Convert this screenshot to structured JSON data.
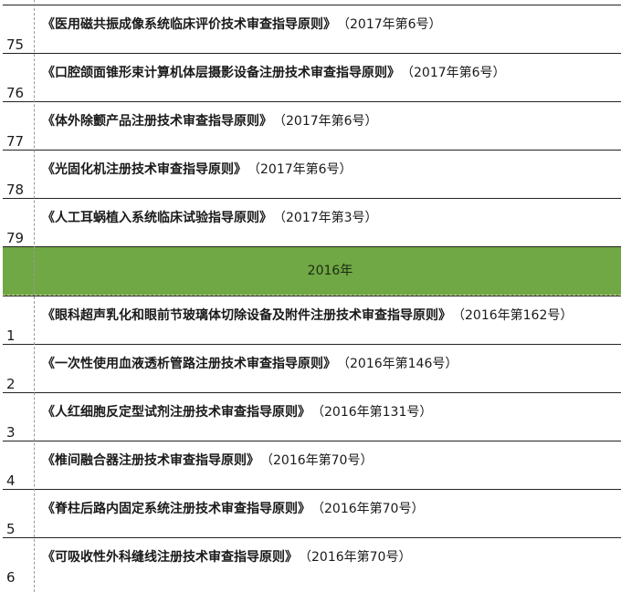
{
  "colors": {
    "year_band": "#6fa845"
  },
  "rows_2017": [
    {
      "num": "75",
      "title": "《医用磁共振成像系统临床评价技术审查指导原则》",
      "code": "（2017年第6号）"
    },
    {
      "num": "76",
      "title": "《口腔颌面锥形束计算机体层摄影设备注册技术审查指导原则》",
      "code": "（2017年第6号）"
    },
    {
      "num": "77",
      "title": "《体外除颤产品注册技术审查指导原则》",
      "code": "（2017年第6号）"
    },
    {
      "num": "78",
      "title": "《光固化机注册技术审查指导原则》",
      "code": "（2017年第6号）"
    },
    {
      "num": "79",
      "title": "《人工耳蜗植入系统临床试验指导原则》",
      "code": "（2017年第3号）"
    }
  ],
  "year_header": "2016年",
  "rows_2016": [
    {
      "num": "1",
      "title": "《眼科超声乳化和眼前节玻璃体切除设备及附件注册技术审查指导原则》",
      "code": "（2016年第162号）"
    },
    {
      "num": "2",
      "title": "《一次性使用血液透析管路注册技术审查指导原则》",
      "code": "（2016年第146号）"
    },
    {
      "num": "3",
      "title": "《人红细胞反定型试剂注册技术审查指导原则》",
      "code": "（2016年第131号）"
    },
    {
      "num": "4",
      "title": "《椎间融合器注册技术审查指导原则》",
      "code": "（2016年第70号）"
    },
    {
      "num": "5",
      "title": "《脊柱后路内固定系统注册技术审查指导原则》",
      "code": "（2016年第70号）"
    },
    {
      "num": "6",
      "title": "《可吸收性外科缝线注册技术审查指导原则》",
      "code": "（2016年第70号）"
    }
  ]
}
